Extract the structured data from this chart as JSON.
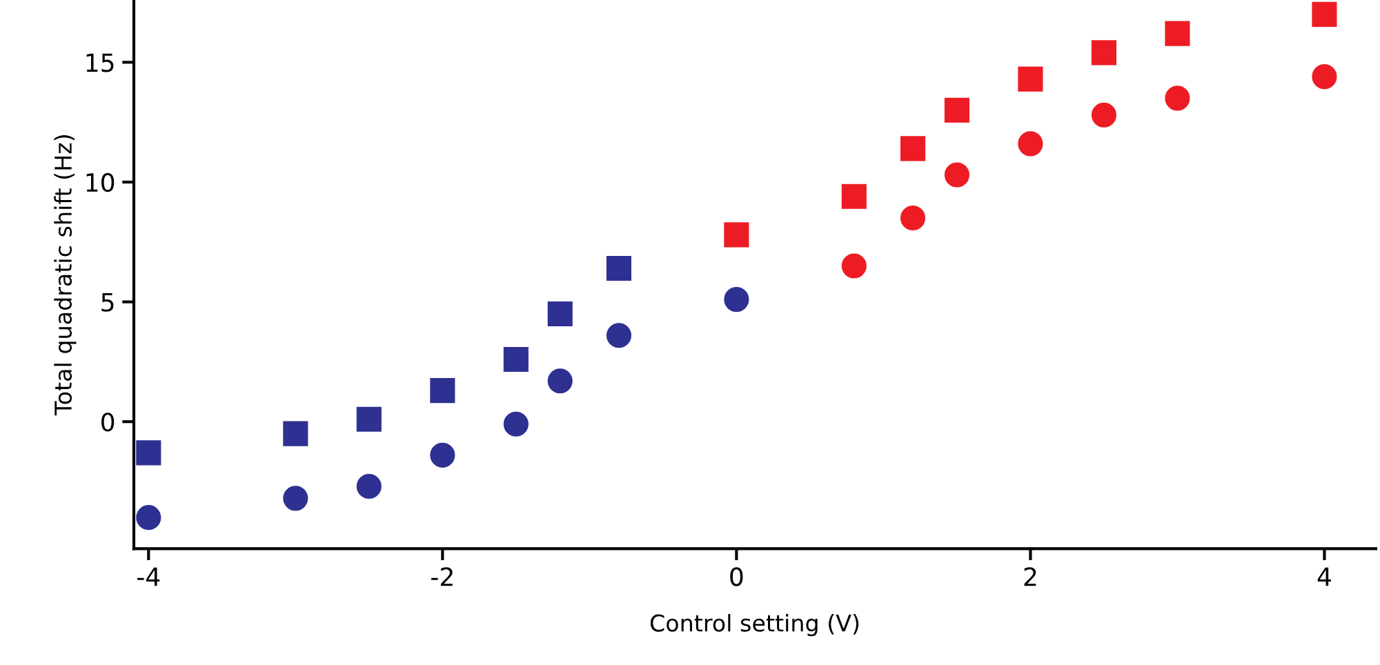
{
  "chart_data": {
    "type": "scatter",
    "xlabel": "Control setting (V)",
    "ylabel": "Total quadratic shift (Hz)",
    "xlim": [
      -4.1,
      4.35
    ],
    "ylim": [
      -5.3,
      17.6
    ],
    "xticks": [
      -4,
      -2,
      0,
      2,
      4
    ],
    "yticks": [
      0,
      5,
      10,
      15
    ],
    "grid": false,
    "legend": false,
    "series": [
      {
        "color": "#2e3192",
        "marker": "square",
        "x": [
          -4,
          -3,
          -2.5,
          -2,
          -1.5,
          -1.2,
          -0.8
        ],
        "values": [
          -1.3,
          -0.5,
          0.1,
          1.3,
          2.6,
          4.5,
          6.4
        ]
      },
      {
        "color": "#ed1c24",
        "marker": "square",
        "x": [
          0,
          0.8,
          1.2,
          1.5,
          2,
          2.5,
          3,
          4
        ],
        "values": [
          7.8,
          9.4,
          11.4,
          13.0,
          14.3,
          15.4,
          16.2,
          17.0
        ]
      },
      {
        "color": "#2e3192",
        "marker": "circle",
        "x": [
          -4,
          -3,
          -2.5,
          -2,
          -1.5,
          -1.2,
          -0.8,
          0
        ],
        "values": [
          -4.0,
          -3.2,
          -2.7,
          -1.4,
          -0.1,
          1.7,
          3.6,
          5.1
        ]
      },
      {
        "color": "#ed1c24",
        "marker": "circle",
        "x": [
          0.8,
          1.2,
          1.5,
          2,
          2.5,
          3,
          4
        ],
        "values": [
          6.5,
          8.5,
          10.3,
          11.6,
          12.8,
          13.5,
          14.4
        ]
      }
    ]
  }
}
